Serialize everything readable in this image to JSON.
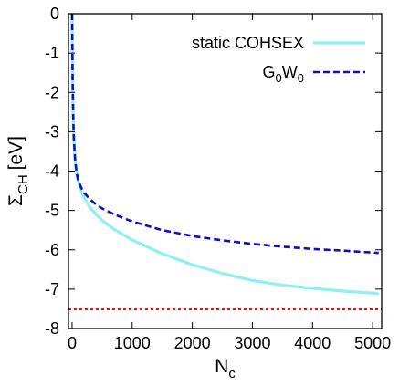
{
  "chart_data": {
    "type": "line",
    "title": "",
    "xlabel": {
      "base": "N",
      "sub": "c"
    },
    "ylabel": {
      "base": "Σ",
      "sub": "CH",
      "unit": "[eV]"
    },
    "xlim": [
      -60,
      5150
    ],
    "ylim": [
      -8,
      0
    ],
    "xticks": [
      0,
      1000,
      2000,
      3000,
      4000,
      5000
    ],
    "xtick_labels": [
      "0",
      "1000",
      "2000",
      "3000",
      "4000",
      "5000"
    ],
    "yticks": [
      0,
      -1,
      -2,
      -3,
      -4,
      -5,
      -6,
      -7,
      -8
    ],
    "ytick_labels": [
      "0",
      "-1",
      "-2",
      "-3",
      "-4",
      "-5",
      "-6",
      "-7",
      "-8"
    ],
    "grid": false,
    "legend_position": "top-right",
    "series": [
      {
        "name": "static COHSEX",
        "name_parts": [
          "static COHSEX"
        ],
        "color": "#8ef0f4",
        "style": "solid",
        "x": [
          0,
          5,
          10,
          20,
          30,
          50,
          75,
          100,
          150,
          200,
          300,
          400,
          500,
          700,
          1000,
          1500,
          2000,
          2500,
          3000,
          3500,
          4000,
          4500,
          5000,
          5100
        ],
        "y": [
          0,
          -1.0,
          -1.8,
          -2.7,
          -3.2,
          -3.7,
          -4.05,
          -4.25,
          -4.5,
          -4.68,
          -4.93,
          -5.1,
          -5.25,
          -5.48,
          -5.75,
          -6.1,
          -6.38,
          -6.6,
          -6.78,
          -6.9,
          -6.98,
          -7.05,
          -7.1,
          -7.12
        ]
      },
      {
        "name": "G0W0",
        "name_parts": [
          "G",
          "0",
          "W",
          "0"
        ],
        "color": "#1010c0",
        "style": "dashed",
        "x": [
          0,
          5,
          10,
          20,
          30,
          50,
          75,
          100,
          150,
          200,
          300,
          400,
          500,
          700,
          1000,
          1500,
          2000,
          2500,
          3000,
          3500,
          4000,
          4500,
          5000,
          5100
        ],
        "y": [
          0,
          -1.0,
          -1.8,
          -2.7,
          -3.2,
          -3.7,
          -4.05,
          -4.22,
          -4.42,
          -4.55,
          -4.72,
          -4.85,
          -4.95,
          -5.1,
          -5.28,
          -5.5,
          -5.65,
          -5.76,
          -5.85,
          -5.92,
          -5.98,
          -6.02,
          -6.07,
          -6.08
        ]
      },
      {
        "name": "",
        "name_parts": [],
        "color": "#dd1111",
        "style": "dotted",
        "x": [
          -60,
          5150
        ],
        "y": [
          -7.5,
          -7.5
        ]
      }
    ]
  }
}
